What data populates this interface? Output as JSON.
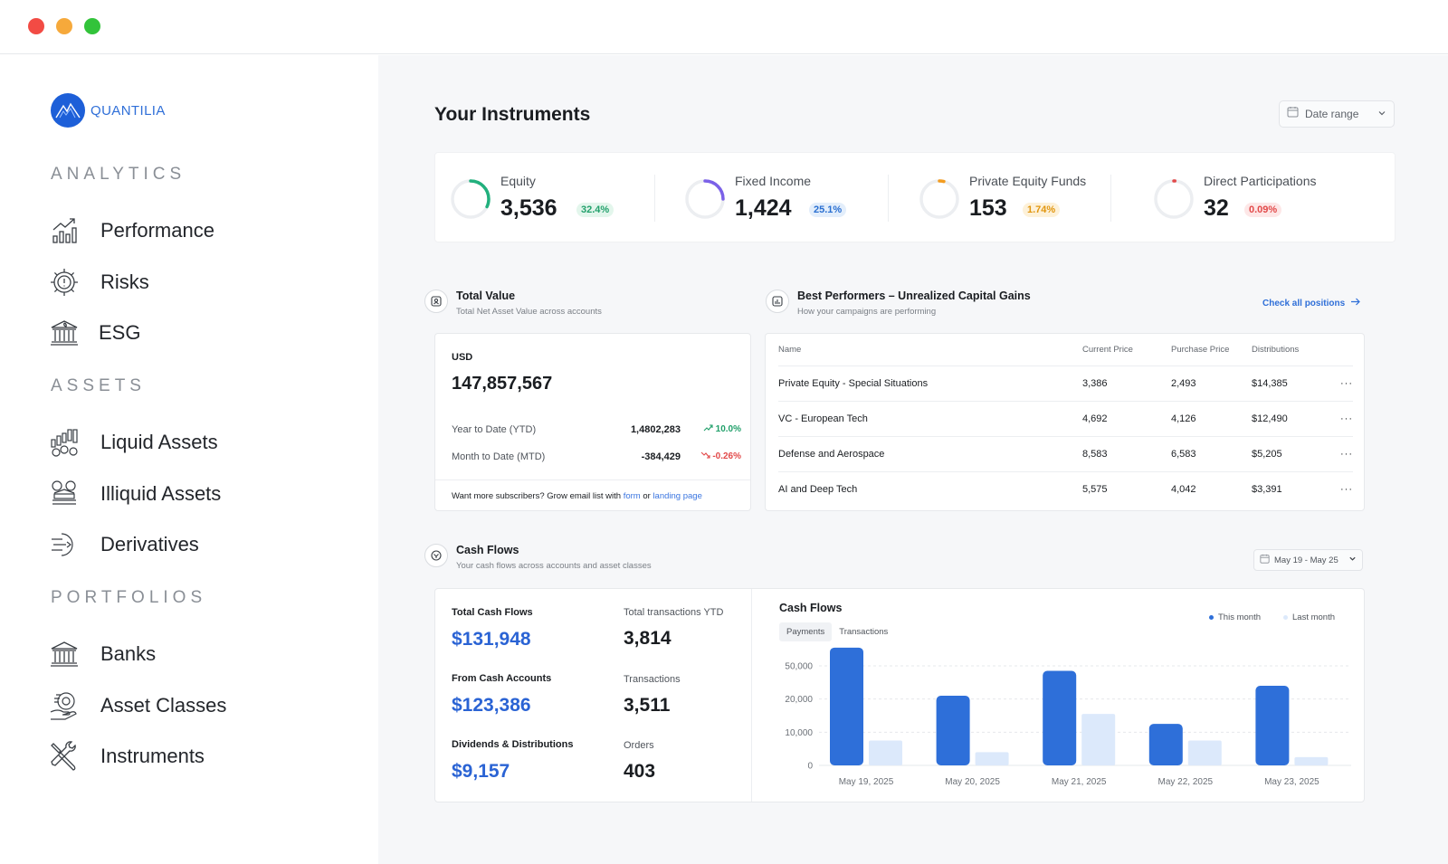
{
  "app": {
    "name": "QUANTILIA"
  },
  "sidebar": {
    "sections": [
      {
        "title": "ANALYTICS",
        "items": [
          {
            "label": "Performance",
            "icon": "performance-chart-icon"
          },
          {
            "label": "Risks",
            "icon": "risk-gear-icon"
          },
          {
            "label": "ESG",
            "icon": "esg-building-icon"
          }
        ]
      },
      {
        "title": "ASSETS",
        "items": [
          {
            "label": "Liquid Assets",
            "icon": "liquid-assets-icon"
          },
          {
            "label": "Illiquid Assets",
            "icon": "illiquid-assets-icon"
          },
          {
            "label": "Derivatives",
            "icon": "derivatives-icon"
          }
        ]
      },
      {
        "title": "PORTFOLIOS",
        "items": [
          {
            "label": "Banks",
            "icon": "bank-icon"
          },
          {
            "label": "Asset Classes",
            "icon": "asset-classes-icon"
          },
          {
            "label": "Instruments",
            "icon": "instruments-tools-icon"
          }
        ]
      }
    ]
  },
  "header": {
    "title": "Your Instruments",
    "date_range": "Date range"
  },
  "stats": [
    {
      "name": "Equity",
      "value": "3,536",
      "change": "32.4%",
      "ring_fraction": 0.32,
      "ring_color": "#22b07d",
      "pill_bg": "#e3f6ec",
      "pill_fg": "#22a06b"
    },
    {
      "name": "Fixed Income",
      "value": "1,424",
      "change": "25.1%",
      "ring_fraction": 0.25,
      "ring_color": "#7b61e8",
      "pill_bg": "#e3eefb",
      "pill_fg": "#2a6fd1"
    },
    {
      "name": "Private Equity Funds",
      "value": "153",
      "change": "1.74%",
      "ring_fraction": 0.04,
      "ring_color": "#f39c1f",
      "pill_bg": "#fdf1d9",
      "pill_fg": "#e1960e"
    },
    {
      "name": "Direct Participations",
      "value": "32",
      "change": "0.09%",
      "ring_fraction": 0.01,
      "ring_color": "#e24a4a",
      "pill_bg": "#fde7e7",
      "pill_fg": "#e24a4a"
    }
  ],
  "total_value": {
    "title": "Total Value",
    "subtitle": "Total Net Asset Value across accounts",
    "currency": "USD",
    "amount": "147,857,567",
    "rows": [
      {
        "label": "Year to Date (YTD)",
        "value": "1,4802,283",
        "delta": "10.0%",
        "trend": "up"
      },
      {
        "label": "Month to Date (MTD)",
        "value": "-384,429",
        "delta": "-0.26%",
        "trend": "down"
      }
    ],
    "footer": {
      "text": "Want more subscribers? Grow email list with",
      "link1": "form",
      "or": "or",
      "link2": "landing page"
    }
  },
  "best_performers": {
    "title": "Best Performers – Unrealized Capital Gains",
    "subtitle": "How your campaigns  are performing",
    "link": "Check all positions",
    "columns": [
      "Name",
      "Current Price",
      "Purchase Price",
      "Distributions"
    ],
    "rows": [
      {
        "name": "Private Equity - Special Situations",
        "current": "3,386",
        "purchase": "2,493",
        "dist": "$14,385"
      },
      {
        "name": "VC - European Tech",
        "current": "4,692",
        "purchase": "4,126",
        "dist": "$12,490"
      },
      {
        "name": "Defense and Aerospace",
        "current": "8,583",
        "purchase": "6,583",
        "dist": "$5,205"
      },
      {
        "name": "AI and Deep Tech",
        "current": "5,575",
        "purchase": "4,042",
        "dist": "$3,391"
      }
    ]
  },
  "cash_flows": {
    "title": "Cash Flows",
    "subtitle": "Your cash flows across accounts and asset classes",
    "range": "May 19 - May 25",
    "metrics": {
      "total_label": "Total Cash Flows",
      "total_value": "$131,948",
      "ytd_label": "Total transactions YTD",
      "ytd_value": "3,814",
      "cash_label": "From Cash Accounts",
      "cash_value": "$123,386",
      "tx_label": "Transactions",
      "tx_value": "3,511",
      "div_label": "Dividends & Distributions",
      "div_value": "$9,157",
      "orders_label": "Orders",
      "orders_value": "403"
    },
    "chart_title": "Cash Flows",
    "tabs": [
      "Payments",
      "Transactions"
    ],
    "legend": {
      "this": "This month",
      "last": "Last month"
    }
  },
  "chart_data": {
    "type": "bar",
    "title": "Cash Flows",
    "categories": [
      "May 19, 2025",
      "May 20, 2025",
      "May 21, 2025",
      "May 22, 2025",
      "May 23, 2025"
    ],
    "y_ticks": [
      "0",
      "10,000",
      "20,000",
      "50,000"
    ],
    "series": [
      {
        "name": "This month",
        "color": "#2e6fd9",
        "values": [
          3.55,
          2.1,
          2.85,
          1.25,
          2.4
        ]
      },
      {
        "name": "Last month",
        "color": "#dce9fb",
        "values": [
          0.75,
          0.4,
          1.55,
          0.75,
          0.25
        ]
      }
    ],
    "value_scale_note_free": true
  }
}
